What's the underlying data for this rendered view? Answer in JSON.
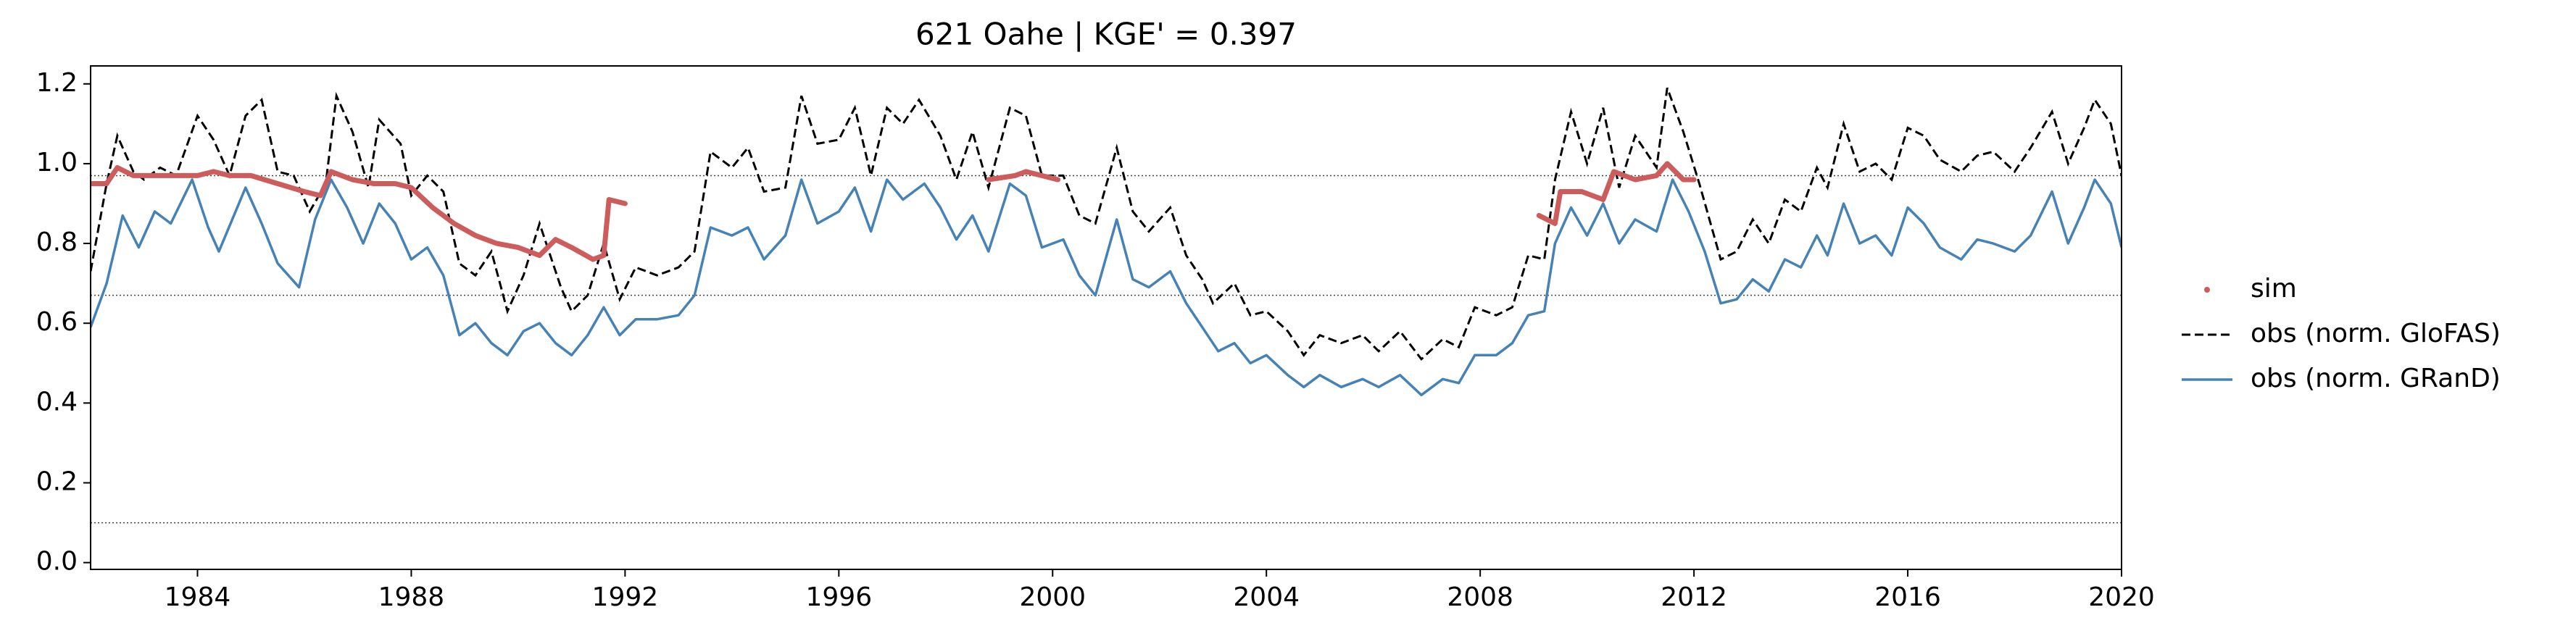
{
  "chart_data": {
    "type": "line",
    "title": "621  Oahe | KGE' = 0.397",
    "xlim": [
      1982,
      2020
    ],
    "xticks": [
      1984,
      1988,
      1992,
      1996,
      2000,
      2004,
      2008,
      2012,
      2016,
      2020
    ],
    "ylim": [
      -0.017,
      1.245
    ],
    "yticks": [
      {
        "value": 0,
        "label": "0.0"
      },
      0.2,
      0.4,
      0.6,
      0.8,
      {
        "value": 1,
        "label": "1.0"
      },
      1.2
    ],
    "hlines": [
      0.97,
      0.67,
      0.1
    ],
    "legend": "outside-right",
    "series": [
      {
        "name": "sim",
        "color": "#cd5c5c",
        "style": "dots",
        "x": [
          1982.0,
          1982.3,
          1982.5,
          1982.8,
          1983.2,
          1983.6,
          1984.0,
          1984.3,
          1984.6,
          1985.0,
          1985.5,
          1986.0,
          1986.3,
          1986.5,
          1986.9,
          1987.3,
          1987.7,
          1988.0,
          1988.4,
          1988.8,
          1989.2,
          1989.6,
          1990.0,
          1990.4,
          1990.7,
          1991.0,
          1991.4,
          1991.6,
          1991.7,
          1992.0,
          1995.0,
          1998.8,
          1999.3,
          1999.5,
          2000.1,
          2005.0,
          2009.1,
          2009.4,
          2009.5,
          2009.9,
          2010.3,
          2010.5,
          2010.9,
          2011.3,
          2011.5,
          2011.8,
          2012.0
        ],
        "values": [
          0.95,
          0.95,
          0.99,
          0.97,
          0.97,
          0.97,
          0.97,
          0.98,
          0.97,
          0.97,
          0.95,
          0.93,
          0.92,
          0.98,
          0.96,
          0.95,
          0.95,
          0.94,
          0.89,
          0.85,
          0.82,
          0.8,
          0.79,
          0.77,
          0.81,
          0.79,
          0.76,
          0.77,
          0.91,
          0.9,
          null,
          0.96,
          0.97,
          0.98,
          0.96,
          null,
          0.87,
          0.85,
          0.93,
          0.93,
          0.91,
          0.98,
          0.96,
          0.97,
          1.0,
          0.96,
          0.96
        ]
      },
      {
        "name": "obs (norm. GloFAS)",
        "color": "#000000",
        "style": "dashed",
        "x": [
          1982.0,
          1982.3,
          1982.5,
          1982.8,
          1983.0,
          1983.3,
          1983.6,
          1984.0,
          1984.3,
          1984.6,
          1984.9,
          1985.2,
          1985.5,
          1985.8,
          1986.1,
          1986.4,
          1986.6,
          1986.9,
          1987.2,
          1987.4,
          1987.8,
          1988.0,
          1988.3,
          1988.6,
          1988.9,
          1989.2,
          1989.5,
          1989.8,
          1990.1,
          1990.4,
          1990.8,
          1991.0,
          1991.3,
          1991.6,
          1991.9,
          1992.2,
          1992.6,
          1993.0,
          1993.3,
          1993.6,
          1994.0,
          1994.3,
          1994.6,
          1995.0,
          1995.3,
          1995.6,
          1996.0,
          1996.3,
          1996.6,
          1996.9,
          1997.2,
          1997.5,
          1997.9,
          1998.2,
          1998.5,
          1998.8,
          1999.2,
          1999.5,
          1999.8,
          2000.2,
          2000.5,
          2000.8,
          2001.2,
          2001.5,
          2001.8,
          2002.2,
          2002.5,
          2002.8,
          2003.0,
          2003.4,
          2003.7,
          2004.0,
          2004.4,
          2004.7,
          2005.0,
          2005.4,
          2005.8,
          2006.1,
          2006.5,
          2006.9,
          2007.3,
          2007.6,
          2007.9,
          2008.3,
          2008.6,
          2008.9,
          2009.2,
          2009.4,
          2009.7,
          2010.0,
          2010.3,
          2010.6,
          2010.9,
          2011.3,
          2011.5,
          2011.8,
          2012.1,
          2012.5,
          2012.8,
          2013.1,
          2013.4,
          2013.7,
          2014.0,
          2014.3,
          2014.5,
          2014.8,
          2015.1,
          2015.4,
          2015.7,
          2016.0,
          2016.3,
          2016.6,
          2017.0,
          2017.3,
          2017.6,
          2018.0,
          2018.3,
          2018.7,
          2019.0,
          2019.3,
          2019.5,
          2019.8,
          2020.0
        ],
        "values": [
          0.73,
          0.95,
          1.07,
          0.98,
          0.96,
          0.99,
          0.97,
          1.12,
          1.06,
          0.97,
          1.12,
          1.16,
          0.98,
          0.97,
          0.88,
          0.95,
          1.17,
          1.08,
          0.94,
          1.11,
          1.05,
          0.92,
          0.97,
          0.93,
          0.75,
          0.72,
          0.78,
          0.63,
          0.72,
          0.85,
          0.69,
          0.63,
          0.67,
          0.8,
          0.66,
          0.74,
          0.72,
          0.74,
          0.78,
          1.03,
          0.99,
          1.04,
          0.93,
          0.94,
          1.17,
          1.05,
          1.06,
          1.14,
          0.97,
          1.14,
          1.1,
          1.16,
          1.07,
          0.96,
          1.08,
          0.94,
          1.14,
          1.12,
          0.97,
          0.97,
          0.87,
          0.85,
          1.04,
          0.88,
          0.83,
          0.89,
          0.77,
          0.71,
          0.65,
          0.7,
          0.62,
          0.63,
          0.58,
          0.52,
          0.57,
          0.55,
          0.57,
          0.53,
          0.58,
          0.51,
          0.56,
          0.54,
          0.64,
          0.62,
          0.64,
          0.77,
          0.76,
          0.96,
          1.13,
          1.0,
          1.14,
          0.94,
          1.07,
          0.99,
          1.19,
          1.08,
          0.95,
          0.76,
          0.78,
          0.86,
          0.8,
          0.91,
          0.88,
          0.99,
          0.94,
          1.1,
          0.98,
          1.0,
          0.96,
          1.09,
          1.07,
          1.01,
          0.98,
          1.02,
          1.03,
          0.98,
          1.04,
          1.13,
          1.0,
          1.09,
          1.16,
          1.1,
          0.97
        ]
      },
      {
        "name": "obs (norm. GRanD)",
        "color": "#4682b4",
        "style": "solid",
        "x": [
          1982.0,
          1982.3,
          1982.6,
          1982.9,
          1983.2,
          1983.5,
          1983.9,
          1984.2,
          1984.4,
          1984.9,
          1985.2,
          1985.5,
          1985.9,
          1986.2,
          1986.5,
          1986.8,
          1987.1,
          1987.4,
          1987.7,
          1988.0,
          1988.3,
          1988.6,
          1988.9,
          1989.2,
          1989.5,
          1989.8,
          1990.1,
          1990.4,
          1990.7,
          1991.0,
          1991.3,
          1991.6,
          1991.9,
          1992.2,
          1992.6,
          1993.0,
          1993.3,
          1993.6,
          1994.0,
          1994.3,
          1994.6,
          1995.0,
          1995.3,
          1995.6,
          1996.0,
          1996.3,
          1996.6,
          1996.9,
          1997.2,
          1997.6,
          1997.9,
          1998.2,
          1998.5,
          1998.8,
          1999.2,
          1999.5,
          1999.8,
          2000.2,
          2000.5,
          2000.8,
          2001.2,
          2001.5,
          2001.8,
          2002.2,
          2002.5,
          2002.8,
          2003.1,
          2003.4,
          2003.7,
          2004.0,
          2004.4,
          2004.7,
          2005.0,
          2005.4,
          2005.8,
          2006.1,
          2006.5,
          2006.9,
          2007.3,
          2007.6,
          2007.9,
          2008.3,
          2008.6,
          2008.9,
          2009.2,
          2009.4,
          2009.7,
          2010.0,
          2010.3,
          2010.6,
          2010.9,
          2011.3,
          2011.6,
          2011.9,
          2012.2,
          2012.5,
          2012.8,
          2013.1,
          2013.4,
          2013.7,
          2014.0,
          2014.3,
          2014.5,
          2014.8,
          2015.1,
          2015.4,
          2015.7,
          2016.0,
          2016.3,
          2016.6,
          2017.0,
          2017.3,
          2017.6,
          2018.0,
          2018.3,
          2018.7,
          2019.0,
          2019.3,
          2019.5,
          2019.8,
          2020.0
        ],
        "values": [
          0.59,
          0.7,
          0.87,
          0.79,
          0.88,
          0.85,
          0.96,
          0.84,
          0.78,
          0.94,
          0.85,
          0.75,
          0.69,
          0.86,
          0.96,
          0.89,
          0.8,
          0.9,
          0.85,
          0.76,
          0.79,
          0.72,
          0.57,
          0.6,
          0.55,
          0.52,
          0.58,
          0.6,
          0.55,
          0.52,
          0.57,
          0.64,
          0.57,
          0.61,
          0.61,
          0.62,
          0.67,
          0.84,
          0.82,
          0.84,
          0.76,
          0.82,
          0.96,
          0.85,
          0.88,
          0.94,
          0.83,
          0.96,
          0.91,
          0.95,
          0.89,
          0.81,
          0.87,
          0.78,
          0.95,
          0.92,
          0.79,
          0.81,
          0.72,
          0.67,
          0.86,
          0.71,
          0.69,
          0.73,
          0.65,
          0.59,
          0.53,
          0.55,
          0.5,
          0.52,
          0.47,
          0.44,
          0.47,
          0.44,
          0.46,
          0.44,
          0.47,
          0.42,
          0.46,
          0.45,
          0.52,
          0.52,
          0.55,
          0.62,
          0.63,
          0.8,
          0.89,
          0.82,
          0.9,
          0.8,
          0.86,
          0.83,
          0.96,
          0.88,
          0.78,
          0.65,
          0.66,
          0.71,
          0.68,
          0.76,
          0.74,
          0.82,
          0.77,
          0.9,
          0.8,
          0.82,
          0.77,
          0.89,
          0.85,
          0.79,
          0.76,
          0.81,
          0.8,
          0.78,
          0.82,
          0.93,
          0.8,
          0.89,
          0.96,
          0.9,
          0.79
        ]
      }
    ]
  }
}
